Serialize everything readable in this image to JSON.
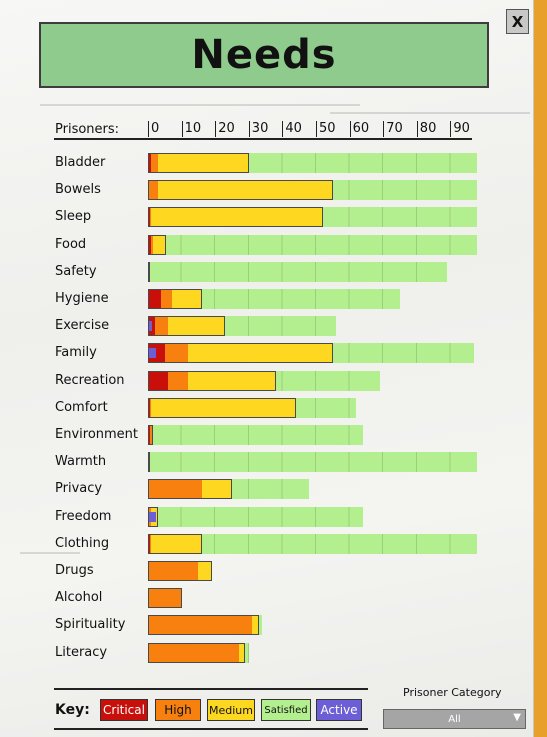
{
  "window": {
    "title": "Needs",
    "close_label": "X"
  },
  "scale": {
    "label": "Prisoners:",
    "ticks": [
      0,
      10,
      20,
      30,
      40,
      50,
      60,
      70,
      80,
      90
    ]
  },
  "colors": {
    "critical": "#c80f0a",
    "high": "#f7800e",
    "medium": "#fed721",
    "satisfied": "#b3ee8f",
    "active": "#6c5ed6",
    "title_bg": "#8fcb8d"
  },
  "needs": [
    {
      "label": "Bladder",
      "total": 98,
      "critical": 1,
      "high": 2,
      "medium": 27,
      "active": 0
    },
    {
      "label": "Bowels",
      "total": 98,
      "critical": 0,
      "high": 3,
      "medium": 52,
      "active": 0
    },
    {
      "label": "Sleep",
      "total": 98,
      "critical": 0.5,
      "high": 0.5,
      "medium": 51,
      "active": 0
    },
    {
      "label": "Food",
      "total": 98,
      "critical": 1,
      "high": 0.5,
      "medium": 4,
      "active": 0
    },
    {
      "label": "Safety",
      "total": 89,
      "critical": 0.5,
      "high": 0,
      "medium": 0,
      "active": 0
    },
    {
      "label": "Hygiene",
      "total": 75,
      "critical": 4,
      "high": 3,
      "medium": 9,
      "active": 0
    },
    {
      "label": "Exercise",
      "total": 56,
      "critical": 2,
      "high": 4,
      "medium": 17,
      "active": 1
    },
    {
      "label": "Family",
      "total": 97,
      "critical": 5,
      "high": 7,
      "medium": 43,
      "active": 2
    },
    {
      "label": "Recreation",
      "total": 69,
      "critical": 6,
      "high": 6,
      "medium": 26,
      "active": 0
    },
    {
      "label": "Comfort",
      "total": 62,
      "critical": 0.5,
      "high": 0.5,
      "medium": 43,
      "active": 0
    },
    {
      "label": "Environment",
      "total": 64,
      "critical": 0.5,
      "high": 1,
      "medium": 0,
      "active": 0
    },
    {
      "label": "Warmth",
      "total": 98,
      "critical": 0.5,
      "high": 0,
      "medium": 0,
      "active": 0
    },
    {
      "label": "Privacy",
      "total": 48,
      "critical": 0,
      "high": 16,
      "medium": 9,
      "active": 0
    },
    {
      "label": "Freedom",
      "total": 64,
      "critical": 0,
      "high": 1,
      "medium": 2,
      "active": 2
    },
    {
      "label": "Clothing",
      "total": 98,
      "critical": 0.5,
      "high": 0.5,
      "medium": 15,
      "active": 0
    },
    {
      "label": "Drugs",
      "total": 19,
      "critical": 0,
      "high": 15,
      "medium": 4,
      "active": 0
    },
    {
      "label": "Alcohol",
      "total": 10,
      "critical": 0,
      "high": 10,
      "medium": 0,
      "active": 0
    },
    {
      "label": "Spirituality",
      "total": 34,
      "critical": 0,
      "high": 31,
      "medium": 2,
      "active": 0
    },
    {
      "label": "Literacy",
      "total": 30,
      "critical": 0,
      "high": 27,
      "medium": 2,
      "active": 0
    }
  ],
  "key": {
    "label": "Key:",
    "items": [
      {
        "label": "Critical",
        "status": "critical"
      },
      {
        "label": "High",
        "status": "high"
      },
      {
        "label": "Medium",
        "status": "medium"
      },
      {
        "label": "Satisfied",
        "status": "satisfied"
      },
      {
        "label": "Active",
        "status": "active"
      }
    ]
  },
  "prisoner_category": {
    "label": "Prisoner Category",
    "value": "All"
  }
}
